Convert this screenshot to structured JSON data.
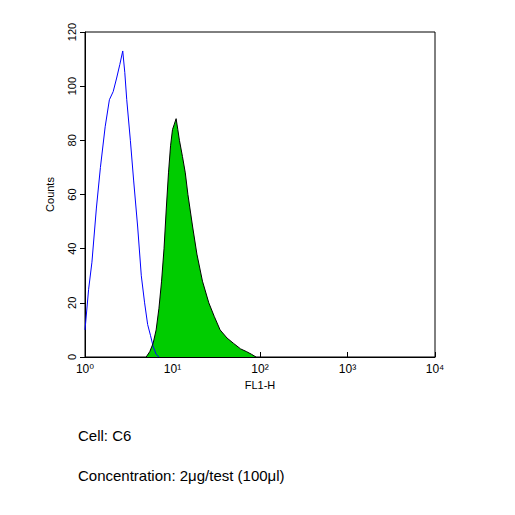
{
  "chart_data": {
    "type": "line",
    "x_label": "FL1-H",
    "y_label": "Counts",
    "annotations": [
      "Cell: C6",
      "Concentration: 2μg/test (100μl)"
    ],
    "log": "x",
    "xlim": [
      1,
      10000
    ],
    "xticks": [
      {
        "value": 1,
        "label": "10⁰"
      },
      {
        "value": 10,
        "label": "10¹"
      },
      {
        "value": 100,
        "label": "10²"
      },
      {
        "value": 1000,
        "label": "10³"
      },
      {
        "value": 10000,
        "label": "10⁴"
      }
    ],
    "ylim": [
      0,
      120
    ],
    "yticks": [
      0,
      20,
      40,
      60,
      80,
      100,
      120
    ],
    "grid": false,
    "series": [
      {
        "type": "line",
        "color": "#0000ff",
        "x": [
          1.0,
          1.1,
          1.2,
          1.35,
          1.5,
          1.7,
          1.9,
          2.1,
          2.3,
          2.5,
          2.7,
          2.85,
          3.0,
          3.3,
          3.6,
          4.0,
          4.4,
          4.8,
          5.2,
          5.6,
          6.0,
          6.5,
          7.0
        ],
        "values": [
          10,
          25,
          35,
          55,
          70,
          85,
          95,
          98,
          103,
          108,
          113,
          105,
          95,
          80,
          65,
          48,
          30,
          20,
          12,
          8,
          4,
          1,
          0
        ]
      },
      {
        "type": "area",
        "color": "#00cc00",
        "x": [
          5,
          5.5,
          6,
          6.5,
          7,
          7.5,
          8,
          8.5,
          9,
          9.5,
          10,
          10.5,
          11,
          11.5,
          12,
          13,
          14,
          15,
          17,
          19,
          22,
          26,
          30,
          35,
          42,
          50,
          60,
          70,
          80,
          90
        ],
        "values": [
          0,
          2,
          5,
          10,
          18,
          28,
          40,
          55,
          68,
          78,
          84,
          86,
          88,
          84,
          80,
          74,
          68,
          60,
          48,
          38,
          28,
          20,
          15,
          10,
          7,
          5,
          3,
          2,
          1,
          0
        ]
      }
    ]
  }
}
